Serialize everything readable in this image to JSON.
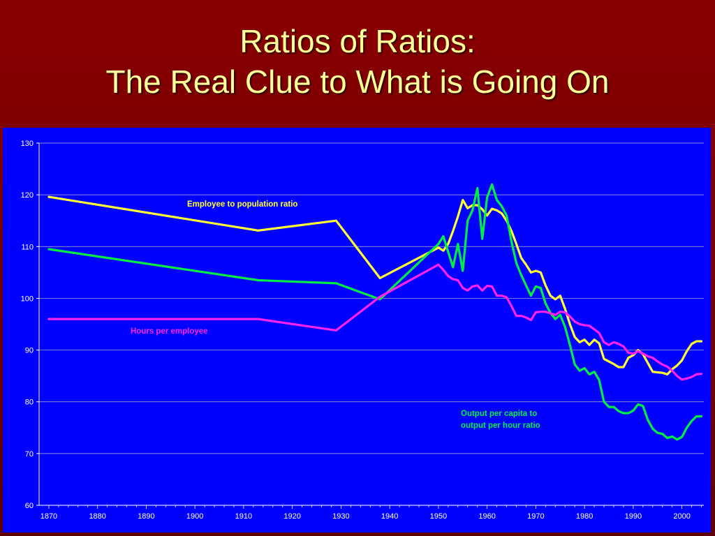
{
  "slide": {
    "title_line1": "Ratios of Ratios:",
    "title_line2": "The Real Clue to What is Going On"
  },
  "colors": {
    "background": "#7a0000",
    "title": "#ffff99",
    "plot_area": "#0000ff",
    "grid": "#c0c0c0"
  },
  "chart_data": {
    "type": "line",
    "xlim": [
      1870,
      2005
    ],
    "ylim": [
      60,
      130
    ],
    "x_ticks": [
      "1870",
      "1880",
      "1890",
      "1900",
      "1910",
      "1920",
      "1930",
      "1940",
      "1950",
      "1960",
      "1970",
      "1980",
      "1990",
      "2000"
    ],
    "y_ticks": [
      "60",
      "70",
      "80",
      "90",
      "100",
      "110",
      "120",
      "130"
    ],
    "grid": "horizontal",
    "series": [
      {
        "name": "Employee to population ratio",
        "color": "#ffff33",
        "points": [
          [
            1870,
            119.6
          ],
          [
            1913,
            113.1
          ],
          [
            1929,
            115.0
          ],
          [
            1938,
            103.9
          ],
          [
            1950,
            109.8
          ],
          [
            1951,
            109.2
          ],
          [
            1952,
            110.5
          ],
          [
            1953,
            113.0
          ],
          [
            1954,
            115.8
          ],
          [
            1955,
            119.0
          ],
          [
            1956,
            117.4
          ],
          [
            1957,
            118.0
          ],
          [
            1958,
            118.0
          ],
          [
            1959,
            117.2
          ],
          [
            1960,
            116.0
          ],
          [
            1961,
            117.3
          ],
          [
            1962,
            117.0
          ],
          [
            1963,
            116.4
          ],
          [
            1964,
            115.0
          ],
          [
            1965,
            113.0
          ],
          [
            1966,
            110.5
          ],
          [
            1967,
            107.8
          ],
          [
            1968,
            106.5
          ],
          [
            1969,
            105.0
          ],
          [
            1970,
            105.3
          ],
          [
            1971,
            105.0
          ],
          [
            1972,
            102.5
          ],
          [
            1973,
            100.5
          ],
          [
            1974,
            99.8
          ],
          [
            1975,
            100.5
          ],
          [
            1976,
            98.0
          ],
          [
            1977,
            95.0
          ],
          [
            1978,
            92.5
          ],
          [
            1979,
            91.5
          ],
          [
            1980,
            92.0
          ],
          [
            1981,
            91.0
          ],
          [
            1982,
            92.0
          ],
          [
            1983,
            91.3
          ],
          [
            1984,
            88.3
          ],
          [
            1985,
            87.8
          ],
          [
            1986,
            87.3
          ],
          [
            1987,
            86.7
          ],
          [
            1988,
            86.7
          ],
          [
            1989,
            88.5
          ],
          [
            1990,
            89.0
          ],
          [
            1991,
            90.0
          ],
          [
            1992,
            89.2
          ],
          [
            1993,
            87.5
          ],
          [
            1994,
            85.8
          ],
          [
            1995,
            85.7
          ],
          [
            1996,
            85.6
          ],
          [
            1997,
            85.3
          ],
          [
            1998,
            86.3
          ],
          [
            1999,
            87.0
          ],
          [
            2000,
            88.0
          ],
          [
            2001,
            89.8
          ],
          [
            2002,
            91.2
          ],
          [
            2003,
            91.7
          ],
          [
            2004,
            91.7
          ]
        ]
      },
      {
        "name": "Output per capita to output per hour ratio",
        "color": "#00ee44",
        "points": [
          [
            1870,
            109.5
          ],
          [
            1913,
            103.5
          ],
          [
            1929,
            102.9
          ],
          [
            1938,
            99.8
          ],
          [
            1950,
            110.5
          ],
          [
            1951,
            112.0
          ],
          [
            1952,
            109.0
          ],
          [
            1953,
            106.0
          ],
          [
            1954,
            110.5
          ],
          [
            1955,
            105.3
          ],
          [
            1956,
            115.0
          ],
          [
            1957,
            117.0
          ],
          [
            1958,
            121.3
          ],
          [
            1959,
            111.5
          ],
          [
            1960,
            119.5
          ],
          [
            1961,
            122.0
          ],
          [
            1962,
            119.0
          ],
          [
            1963,
            117.8
          ],
          [
            1964,
            116.0
          ],
          [
            1965,
            111.0
          ],
          [
            1966,
            106.8
          ],
          [
            1967,
            104.5
          ],
          [
            1968,
            102.5
          ],
          [
            1969,
            100.5
          ],
          [
            1970,
            102.3
          ],
          [
            1971,
            102.0
          ],
          [
            1972,
            99.0
          ],
          [
            1973,
            97.2
          ],
          [
            1974,
            96.0
          ],
          [
            1975,
            96.8
          ],
          [
            1976,
            94.5
          ],
          [
            1977,
            91.0
          ],
          [
            1978,
            87.2
          ],
          [
            1979,
            86.0
          ],
          [
            1980,
            86.5
          ],
          [
            1981,
            85.3
          ],
          [
            1982,
            85.8
          ],
          [
            1983,
            84.2
          ],
          [
            1984,
            80.0
          ],
          [
            1985,
            79.0
          ],
          [
            1986,
            79.0
          ],
          [
            1987,
            78.2
          ],
          [
            1988,
            77.8
          ],
          [
            1989,
            77.8
          ],
          [
            1990,
            78.3
          ],
          [
            1991,
            79.5
          ],
          [
            1992,
            79.2
          ],
          [
            1993,
            76.5
          ],
          [
            1994,
            74.8
          ],
          [
            1995,
            74.0
          ],
          [
            1996,
            73.8
          ],
          [
            1997,
            73.0
          ],
          [
            1998,
            73.3
          ],
          [
            1999,
            72.7
          ],
          [
            2000,
            73.2
          ],
          [
            2001,
            75.0
          ],
          [
            2002,
            76.3
          ],
          [
            2003,
            77.2
          ],
          [
            2004,
            77.2
          ]
        ]
      },
      {
        "name": "Hours per employee",
        "color": "#ff22ee",
        "points": [
          [
            1870,
            96.0
          ],
          [
            1913,
            96.0
          ],
          [
            1929,
            93.8
          ],
          [
            1938,
            100.3
          ],
          [
            1950,
            106.5
          ],
          [
            1951,
            105.5
          ],
          [
            1952,
            104.3
          ],
          [
            1953,
            103.7
          ],
          [
            1954,
            103.5
          ],
          [
            1955,
            102.0
          ],
          [
            1956,
            101.5
          ],
          [
            1957,
            102.3
          ],
          [
            1958,
            102.5
          ],
          [
            1959,
            101.5
          ],
          [
            1960,
            102.4
          ],
          [
            1961,
            102.3
          ],
          [
            1962,
            100.5
          ],
          [
            1963,
            100.5
          ],
          [
            1964,
            100.2
          ],
          [
            1965,
            98.5
          ],
          [
            1966,
            96.6
          ],
          [
            1967,
            96.6
          ],
          [
            1968,
            96.3
          ],
          [
            1969,
            95.8
          ],
          [
            1970,
            97.3
          ],
          [
            1971,
            97.4
          ],
          [
            1972,
            97.4
          ],
          [
            1973,
            97.1
          ],
          [
            1974,
            96.8
          ],
          [
            1975,
            97.4
          ],
          [
            1976,
            97.3
          ],
          [
            1977,
            96.5
          ],
          [
            1978,
            95.5
          ],
          [
            1979,
            95.0
          ],
          [
            1980,
            94.8
          ],
          [
            1981,
            94.7
          ],
          [
            1982,
            94.0
          ],
          [
            1983,
            93.3
          ],
          [
            1984,
            91.5
          ],
          [
            1985,
            91.0
          ],
          [
            1986,
            91.5
          ],
          [
            1987,
            91.2
          ],
          [
            1988,
            90.7
          ],
          [
            1989,
            89.5
          ],
          [
            1990,
            89.3
          ],
          [
            1991,
            89.8
          ],
          [
            1992,
            89.3
          ],
          [
            1993,
            88.8
          ],
          [
            1994,
            88.5
          ],
          [
            1995,
            87.8
          ],
          [
            1996,
            87.2
          ],
          [
            1997,
            86.8
          ],
          [
            1998,
            86.0
          ],
          [
            1999,
            85.0
          ],
          [
            2000,
            84.3
          ],
          [
            2001,
            84.5
          ],
          [
            2002,
            84.8
          ],
          [
            2003,
            85.3
          ],
          [
            2004,
            85.4
          ]
        ]
      }
    ],
    "annotations": {
      "employee_to_population": "Employee to population ratio",
      "hours_per_employee": "Hours per employee",
      "output_line1": "Output per capita to",
      "output_line2": "output per hour ratio"
    }
  }
}
